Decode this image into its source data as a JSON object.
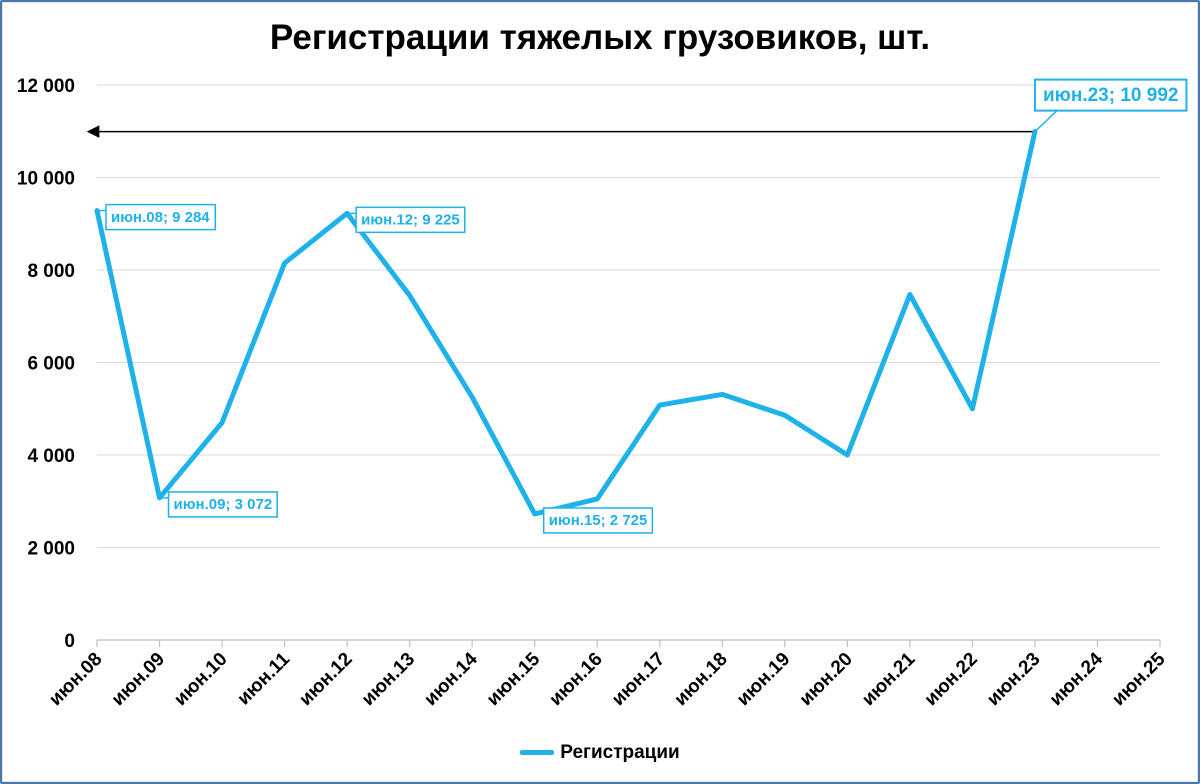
{
  "chart_data": {
    "type": "line",
    "title": "Регистрации тяжелых грузовиков, шт.",
    "categories": [
      "июн.08",
      "июн.09",
      "июн.10",
      "июн.11",
      "июн.12",
      "июн.13",
      "июн.14",
      "июн.15",
      "июн.16",
      "июн.17",
      "июн.18",
      "июн.19",
      "июн.20",
      "июн.21",
      "июн.22",
      "июн.23",
      "июн.24",
      "июн.25"
    ],
    "series": [
      {
        "name": "Регистрации",
        "color": "#1fb1ea",
        "values": [
          9284,
          3072,
          4700,
          8150,
          9225,
          7450,
          5250,
          2725,
          3050,
          5080,
          5310,
          4860,
          4000,
          7470,
          5000,
          10992,
          null,
          null
        ]
      }
    ],
    "ylim": [
      0,
      12000
    ],
    "yticks": [
      0,
      2000,
      4000,
      6000,
      8000,
      10000,
      12000
    ],
    "ytick_labels": [
      "0",
      "2 000",
      "4 000",
      "6 000",
      "8 000",
      "10 000",
      "12 000"
    ],
    "grid": true,
    "legend_position": "bottom",
    "annotations": [
      {
        "index": 0,
        "text": "июн.08; 9 284"
      },
      {
        "index": 1,
        "text": "июн.09; 3 072"
      },
      {
        "index": 4,
        "text": "июн.12; 9 225"
      },
      {
        "index": 7,
        "text": "июн.15; 2 725"
      },
      {
        "index": 15,
        "text": "июн.23; 10 992",
        "emphasis": true
      }
    ],
    "reference_arrow": {
      "from_index": 15,
      "value": 10992,
      "direction": "left"
    }
  }
}
